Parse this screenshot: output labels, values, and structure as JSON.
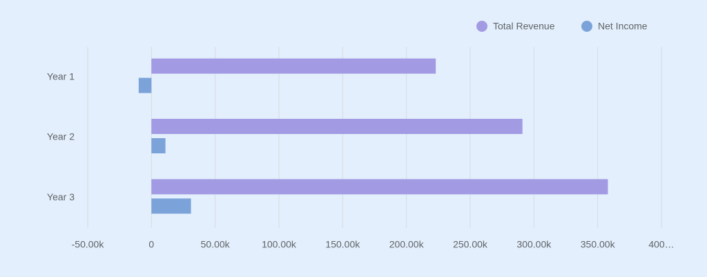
{
  "chart_data": {
    "type": "hbar",
    "categories": [
      "Year 1",
      "Year 2",
      "Year 3"
    ],
    "series": [
      {
        "name": "Total Revenue",
        "color": "#a29be4",
        "values": [
          223000,
          291000,
          358000
        ]
      },
      {
        "name": "Net Income",
        "color": "#7ba3d9",
        "values": [
          -10000,
          11000,
          31000
        ]
      }
    ],
    "xlim": [
      -50000,
      400000
    ],
    "xticks": [
      {
        "value": -50000,
        "label": "-50.00k"
      },
      0,
      {
        "value": 50000,
        "label": "50.00k"
      },
      {
        "value": 100000,
        "label": "100.00k"
      },
      {
        "value": 150000,
        "label": "150.00k"
      },
      {
        "value": 200000,
        "label": "200.00k"
      },
      {
        "value": 250000,
        "label": "250.00k"
      },
      {
        "value": 300000,
        "label": "300.00k"
      },
      {
        "value": 350000,
        "label": "350.00k"
      },
      {
        "value": 400000,
        "label": "400…"
      }
    ],
    "grid": true,
    "legend": "top-right"
  }
}
